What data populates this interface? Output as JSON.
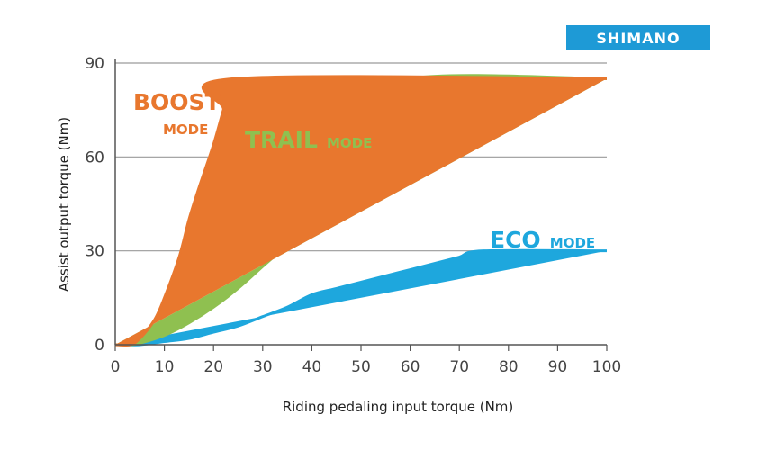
{
  "logo": {
    "text": "SHIMANO",
    "background": "#1e9ad6"
  },
  "chart_data": {
    "type": "line",
    "xlabel": "Riding pedaling input torque (Nm)",
    "ylabel": "Assist output torque (Nm)",
    "xlim": [
      0,
      100
    ],
    "ylim": [
      0,
      90
    ],
    "x_ticks": [
      0,
      10,
      20,
      30,
      40,
      50,
      60,
      70,
      80,
      90,
      100
    ],
    "y_ticks": [
      0,
      30,
      60,
      90
    ],
    "grid": "horizontal",
    "series": [
      {
        "key": "boost",
        "name_main": "BOOST",
        "name_sub": "MODE",
        "color": "#e8772e",
        "x": [
          0,
          3,
          5,
          8,
          10,
          13,
          15,
          17,
          20,
          22,
          24,
          100
        ],
        "y": [
          0,
          0,
          2,
          8,
          15,
          28,
          40,
          50,
          64,
          75,
          85,
          85
        ]
      },
      {
        "key": "trail",
        "name_main": "TRAIL",
        "name_sub": "MODE",
        "color": "#8fc050",
        "x": [
          0,
          3,
          5,
          10,
          15,
          20,
          25,
          30,
          35,
          40,
          45,
          50,
          55,
          60,
          100
        ],
        "y": [
          0,
          0,
          0.5,
          3,
          7,
          12,
          18,
          25,
          32,
          40,
          49,
          58,
          71,
          85,
          85
        ]
      },
      {
        "key": "eco",
        "name_main": "ECO",
        "name_sub": "MODE",
        "color": "#1ea7dd",
        "x": [
          0,
          5,
          10,
          15,
          20,
          25,
          30,
          35,
          40,
          45,
          50,
          55,
          60,
          65,
          70,
          75,
          100
        ],
        "y": [
          0,
          0,
          1,
          2,
          4,
          6,
          9,
          12,
          16,
          18,
          20,
          22,
          24,
          26,
          28,
          30,
          30
        ]
      }
    ]
  }
}
